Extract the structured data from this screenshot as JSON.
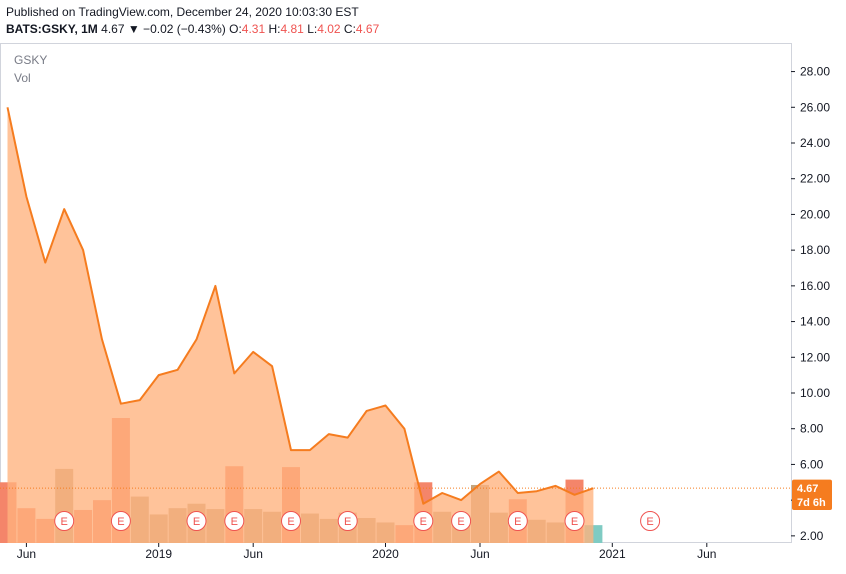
{
  "header": {
    "published": "Published on TradingView.com, December 24, 2020 10:03:30 EST",
    "symbol": "BATS:GSKY, 1M",
    "last": "4.67",
    "change": "▼ −0.02 (−0.43%)",
    "o_label": "O:",
    "o_value": "4.31",
    "h_label": "H:",
    "h_value": "4.81",
    "l_label": "L:",
    "l_value": "4.02",
    "c_label": "C:",
    "c_value": "4.67"
  },
  "colors": {
    "line": "#f57c1f",
    "area": "#ffb27d",
    "vol_down": "#f4856a",
    "vol_up": "#c3a57f",
    "vol_up_last": "#7fcbc3",
    "last_price_badge": "#f57c1f",
    "countdown_badge": "#f57c1f",
    "earnings": "#ef5350"
  },
  "chart_data": {
    "type": "area",
    "title": "GSKY",
    "legend": [
      "GSKY",
      "Vol"
    ],
    "ylim": [
      1.6,
      29.6
    ],
    "y_ticks": [
      "2.00",
      "4.00",
      "6.00",
      "8.00",
      "10.00",
      "12.00",
      "14.00",
      "16.00",
      "18.00",
      "20.00",
      "22.00",
      "24.00",
      "26.00",
      "28.00"
    ],
    "x_ticks": [
      "Jun",
      "2019",
      "Jun",
      "2020",
      "Jun",
      "2021",
      "Jun"
    ],
    "months": [
      "2018-05",
      "2018-06",
      "2018-07",
      "2018-08",
      "2018-09",
      "2018-10",
      "2018-11",
      "2018-12",
      "2019-01",
      "2019-02",
      "2019-03",
      "2019-04",
      "2019-05",
      "2019-06",
      "2019-07",
      "2019-08",
      "2019-09",
      "2019-10",
      "2019-11",
      "2019-12",
      "2020-01",
      "2020-02",
      "2020-03",
      "2020-04",
      "2020-05",
      "2020-06",
      "2020-07",
      "2020-08",
      "2020-09",
      "2020-10",
      "2020-11",
      "2020-12"
    ],
    "close": [
      26.0,
      21.0,
      17.3,
      20.3,
      18.0,
      13.0,
      9.4,
      9.6,
      11.0,
      11.3,
      13.0,
      16.0,
      11.1,
      12.3,
      11.5,
      6.8,
      6.8,
      7.7,
      7.5,
      9.0,
      9.3,
      8.0,
      3.8,
      4.4,
      4.0,
      4.9,
      5.6,
      4.4,
      4.5,
      4.8,
      4.3,
      4.67
    ],
    "volume_bar_tops": [
      5.0,
      3.55,
      2.95,
      5.75,
      3.45,
      4.0,
      8.6,
      4.2,
      3.2,
      3.55,
      3.8,
      3.5,
      5.9,
      3.5,
      3.35,
      5.85,
      3.25,
      2.95,
      3.3,
      3.0,
      2.75,
      2.6,
      5.0,
      3.35,
      3.15,
      4.85,
      3.3,
      4.05,
      2.9,
      2.75,
      5.15,
      2.6
    ],
    "volume_direction": [
      "down",
      "down",
      "down",
      "up",
      "down",
      "down",
      "down",
      "up",
      "up",
      "up",
      "up",
      "up",
      "down",
      "up",
      "up",
      "down",
      "up",
      "up",
      "up",
      "up",
      "up",
      "down",
      "down",
      "up",
      "up",
      "up",
      "up",
      "down",
      "up",
      "up",
      "down",
      "up"
    ],
    "earnings_months": [
      "2018-08",
      "2018-11",
      "2019-03",
      "2019-05",
      "2019-08",
      "2019-11",
      "2020-03",
      "2020-05",
      "2020-08",
      "2020-11",
      "2021-03"
    ],
    "earnings_label": "E",
    "last_value": "4.67",
    "countdown": "7d 6h"
  }
}
